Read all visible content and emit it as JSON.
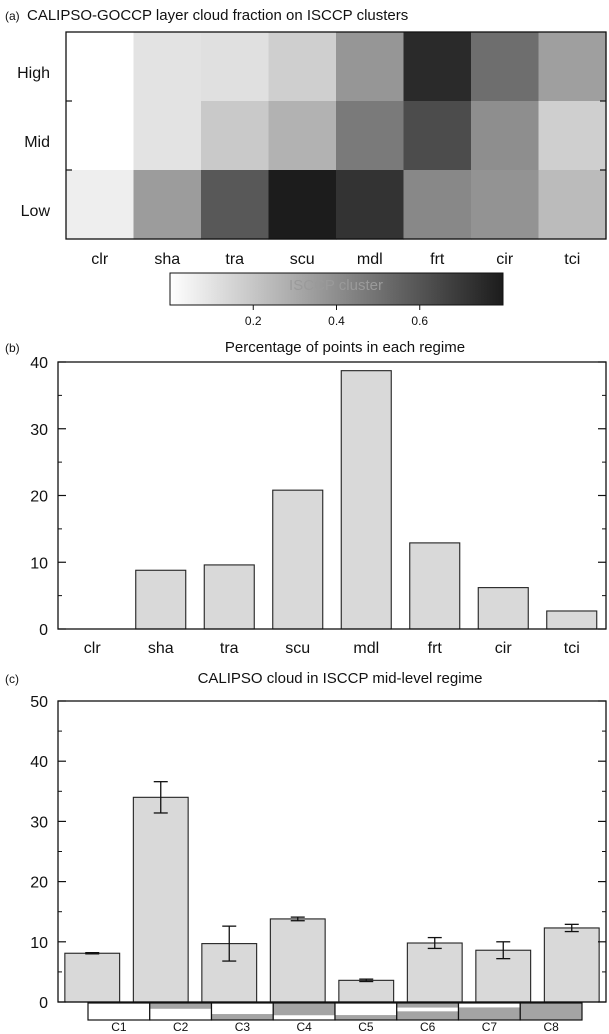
{
  "chart_data": [
    {
      "type": "heatmap",
      "panel": "(a)",
      "title": "CALIPSO-GOCCP layer cloud fraction on ISCCP clusters",
      "rows": [
        "High",
        "Mid",
        "Low"
      ],
      "columns": [
        "clr",
        "sha",
        "tra",
        "scu",
        "mdl",
        "frt",
        "cir",
        "tci"
      ],
      "values": [
        [
          0.0,
          0.1,
          0.11,
          0.17,
          0.37,
          0.75,
          0.51,
          0.34
        ],
        [
          0.0,
          0.1,
          0.19,
          0.27,
          0.47,
          0.63,
          0.4,
          0.17
        ],
        [
          0.06,
          0.35,
          0.59,
          0.82,
          0.72,
          0.42,
          0.38,
          0.24
        ]
      ],
      "colorbar": {
        "label": "ISCCP cluster",
        "range": [
          0.0,
          0.8
        ],
        "ticks": [
          "0.2",
          "0.4",
          "0.6"
        ],
        "tick_values": [
          0.2,
          0.4,
          0.6
        ],
        "low_color": "#ffffff",
        "high_color": "#1c1c1c"
      }
    },
    {
      "type": "bar",
      "panel": "(b)",
      "title": "Percentage of points in each regime",
      "categories": [
        "clr",
        "sha",
        "tra",
        "scu",
        "mdl",
        "frt",
        "cir",
        "tci"
      ],
      "values": [
        0,
        8.8,
        9.6,
        20.8,
        38.7,
        12.9,
        6.2,
        2.7
      ],
      "ylim": [
        0,
        40
      ],
      "yticks": [
        "0",
        "10",
        "20",
        "30",
        "40"
      ],
      "ytick_values": [
        0,
        10,
        20,
        30,
        40
      ],
      "bar_color": "#d9d9d9"
    },
    {
      "type": "bar",
      "panel": "(c)",
      "title": "CALIPSO cloud in ISCCP mid-level regime",
      "categories": [
        "C1",
        "C2",
        "C3",
        "C4",
        "C5",
        "C6",
        "C7",
        "C8"
      ],
      "values": [
        8.1,
        34.0,
        9.7,
        13.8,
        3.6,
        9.8,
        8.6,
        12.3
      ],
      "errors": [
        0.1,
        2.6,
        2.9,
        0.3,
        0.2,
        0.9,
        1.4,
        0.6
      ],
      "ylim": [
        0,
        50
      ],
      "yticks": [
        "0",
        "10",
        "20",
        "30",
        "40",
        "50"
      ],
      "ytick_values": [
        0,
        10,
        20,
        30,
        40,
        50
      ],
      "bar_color": "#d9d9d9",
      "cluster_profiles": [
        [],
        [
          [
            0.0,
            0.34
          ]
        ],
        [
          [
            0.65,
            1.0
          ]
        ],
        [
          [
            0.0,
            0.72
          ]
        ],
        [
          [
            0.71,
            1.0
          ]
        ],
        [
          [
            0.0,
            0.27
          ],
          [
            0.49,
            1.0
          ]
        ],
        [
          [
            0.26,
            1.0
          ]
        ],
        [
          [
            0.0,
            1.0
          ]
        ]
      ],
      "profile_color": "#a4a4a4"
    }
  ]
}
